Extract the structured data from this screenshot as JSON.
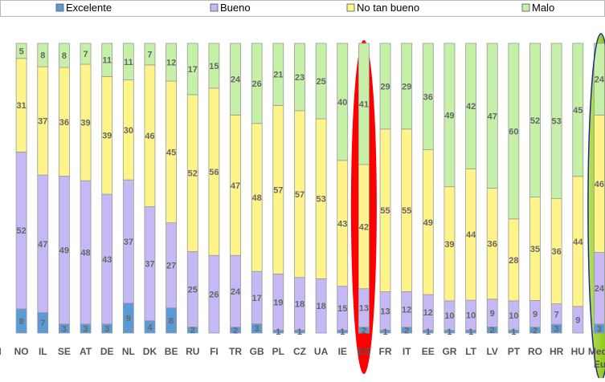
{
  "chart_data": {
    "type": "bar",
    "stacked": "percent",
    "legend_position": "top",
    "categories": [
      "I",
      "NO",
      "IL",
      "SE",
      "AT",
      "DE",
      "NL",
      "DK",
      "BE",
      "RU",
      "FI",
      "TR",
      "GB",
      "PL",
      "CZ",
      "UA",
      "IE",
      "ES",
      "FR",
      "IT",
      "EE",
      "GR",
      "LT",
      "LV",
      "PT",
      "RO",
      "HR",
      "HU",
      "Media Eur"
    ],
    "series": [
      {
        "name": "Excelente",
        "color": "#5b9bd5",
        "values": [
          null,
          8,
          7,
          3,
          3,
          3,
          9,
          4,
          8,
          2,
          null,
          2,
          3,
          1,
          1,
          null,
          1,
          2,
          1,
          2,
          1,
          1,
          1,
          2,
          1,
          2,
          3,
          null,
          3
        ],
        "labels": [
          "",
          "8",
          "7",
          "3",
          "3",
          "3",
          "9",
          "4",
          "8",
          "2",
          "",
          "2",
          "3",
          "1",
          "1",
          "",
          "1",
          "2",
          "1",
          "2",
          "1",
          "1",
          "1",
          "2",
          "1",
          "2",
          "3",
          "",
          "3"
        ]
      },
      {
        "name": "Bueno",
        "color": "#c5b8f5",
        "values": [
          null,
          52,
          47,
          49,
          48,
          43,
          37,
          37,
          27,
          25,
          26,
          24,
          17,
          19,
          18,
          18,
          15,
          13,
          13,
          12,
          12,
          10,
          10,
          9,
          10,
          9,
          7,
          9,
          24
        ],
        "labels": [
          "",
          "52",
          "47",
          "49",
          "48",
          "43",
          "37",
          "37",
          "27",
          "25",
          "26",
          "24",
          "17",
          "19",
          "18",
          "18",
          "15",
          "13",
          "13",
          "12",
          "12",
          "10",
          "10",
          "9",
          "10",
          "9",
          "7",
          "9",
          "24"
        ]
      },
      {
        "name": "No tan bueno",
        "color": "#fff48a",
        "values": [
          null,
          31,
          37,
          36,
          39,
          39,
          30,
          46,
          45,
          52,
          56,
          47,
          48,
          57,
          57,
          53,
          43,
          42,
          55,
          55,
          49,
          39,
          44,
          36,
          28,
          35,
          36,
          44,
          46
        ],
        "labels": [
          "",
          "31",
          "37",
          "36",
          "39",
          "39",
          "30",
          "46",
          "45",
          "52",
          "56",
          "47",
          "48",
          "57",
          "57",
          "53",
          "43",
          "42",
          "55",
          "55",
          "49",
          "39",
          "44",
          "36",
          "28",
          "35",
          "36",
          "44",
          "46"
        ]
      },
      {
        "name": "Malo",
        "color": "#c6efa8",
        "values": [
          null,
          5,
          8,
          8,
          7,
          11,
          11,
          7,
          12,
          17,
          15,
          24,
          26,
          21,
          23,
          25,
          40,
          41,
          29,
          29,
          36,
          49,
          42,
          47,
          60,
          52,
          53,
          45,
          24
        ],
        "labels": [
          "",
          "5",
          "8",
          "8",
          "7",
          "11",
          "11",
          "7",
          "12",
          "17",
          "15",
          "24",
          "26",
          "21",
          "23",
          "25",
          "40",
          "41",
          "29",
          "29",
          "36",
          "49",
          "42",
          "47",
          "60",
          "52",
          "53",
          "45",
          "24"
        ]
      }
    ],
    "highlights": [
      {
        "category": "ES",
        "color": "#ff0000"
      },
      {
        "category": "Media Eur",
        "color": "#99cc00"
      }
    ],
    "title": "",
    "xlabel": "",
    "ylabel": ""
  }
}
